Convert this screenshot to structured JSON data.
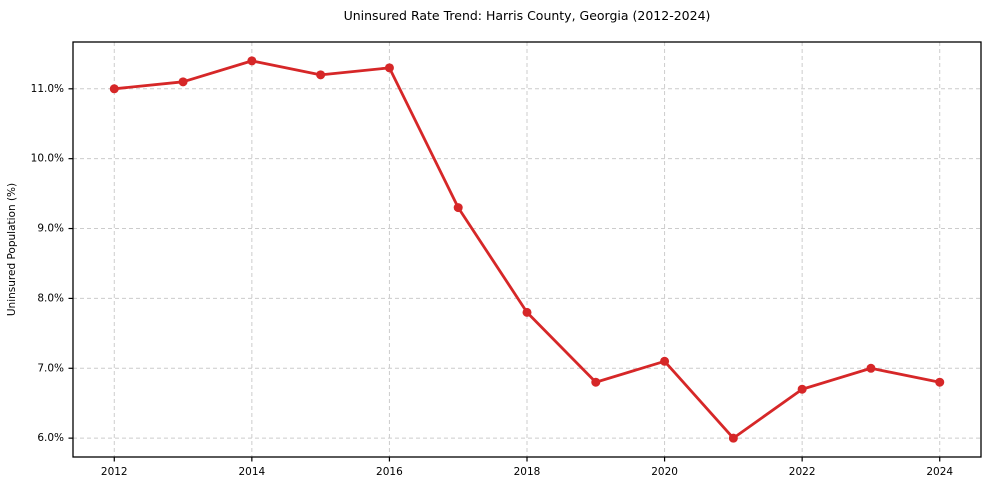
{
  "chart_data": {
    "type": "line",
    "title": "Uninsured Rate Trend: Harris County, Georgia (2012-2024)",
    "xlabel": "",
    "ylabel": "Uninsured Population (%)",
    "x": [
      2012,
      2013,
      2014,
      2015,
      2016,
      2017,
      2018,
      2019,
      2020,
      2021,
      2022,
      2023,
      2024
    ],
    "values": [
      11.0,
      11.1,
      11.4,
      11.2,
      11.3,
      9.3,
      7.8,
      6.8,
      7.1,
      6.0,
      6.7,
      7.0,
      6.8
    ],
    "xlim": [
      2011.4,
      2024.6
    ],
    "ylim": [
      5.73,
      11.67
    ],
    "xticks": {
      "values": [
        2012,
        2014,
        2016,
        2018,
        2020,
        2022,
        2024
      ],
      "labels": [
        "2012",
        "2014",
        "2016",
        "2018",
        "2020",
        "2022",
        "2024"
      ]
    },
    "yticks": {
      "values": [
        6.0,
        7.0,
        8.0,
        9.0,
        10.0,
        11.0
      ],
      "labels": [
        "6.0%",
        "7.0%",
        "8.0%",
        "9.0%",
        "10.0%",
        "11.0%"
      ]
    },
    "grid": true,
    "grid_style": "dashed",
    "legend": "none",
    "line_color": "#d62728",
    "grid_color": "#cccccc",
    "frame_color": "#000000",
    "background": "#ffffff",
    "marker": "circle"
  }
}
